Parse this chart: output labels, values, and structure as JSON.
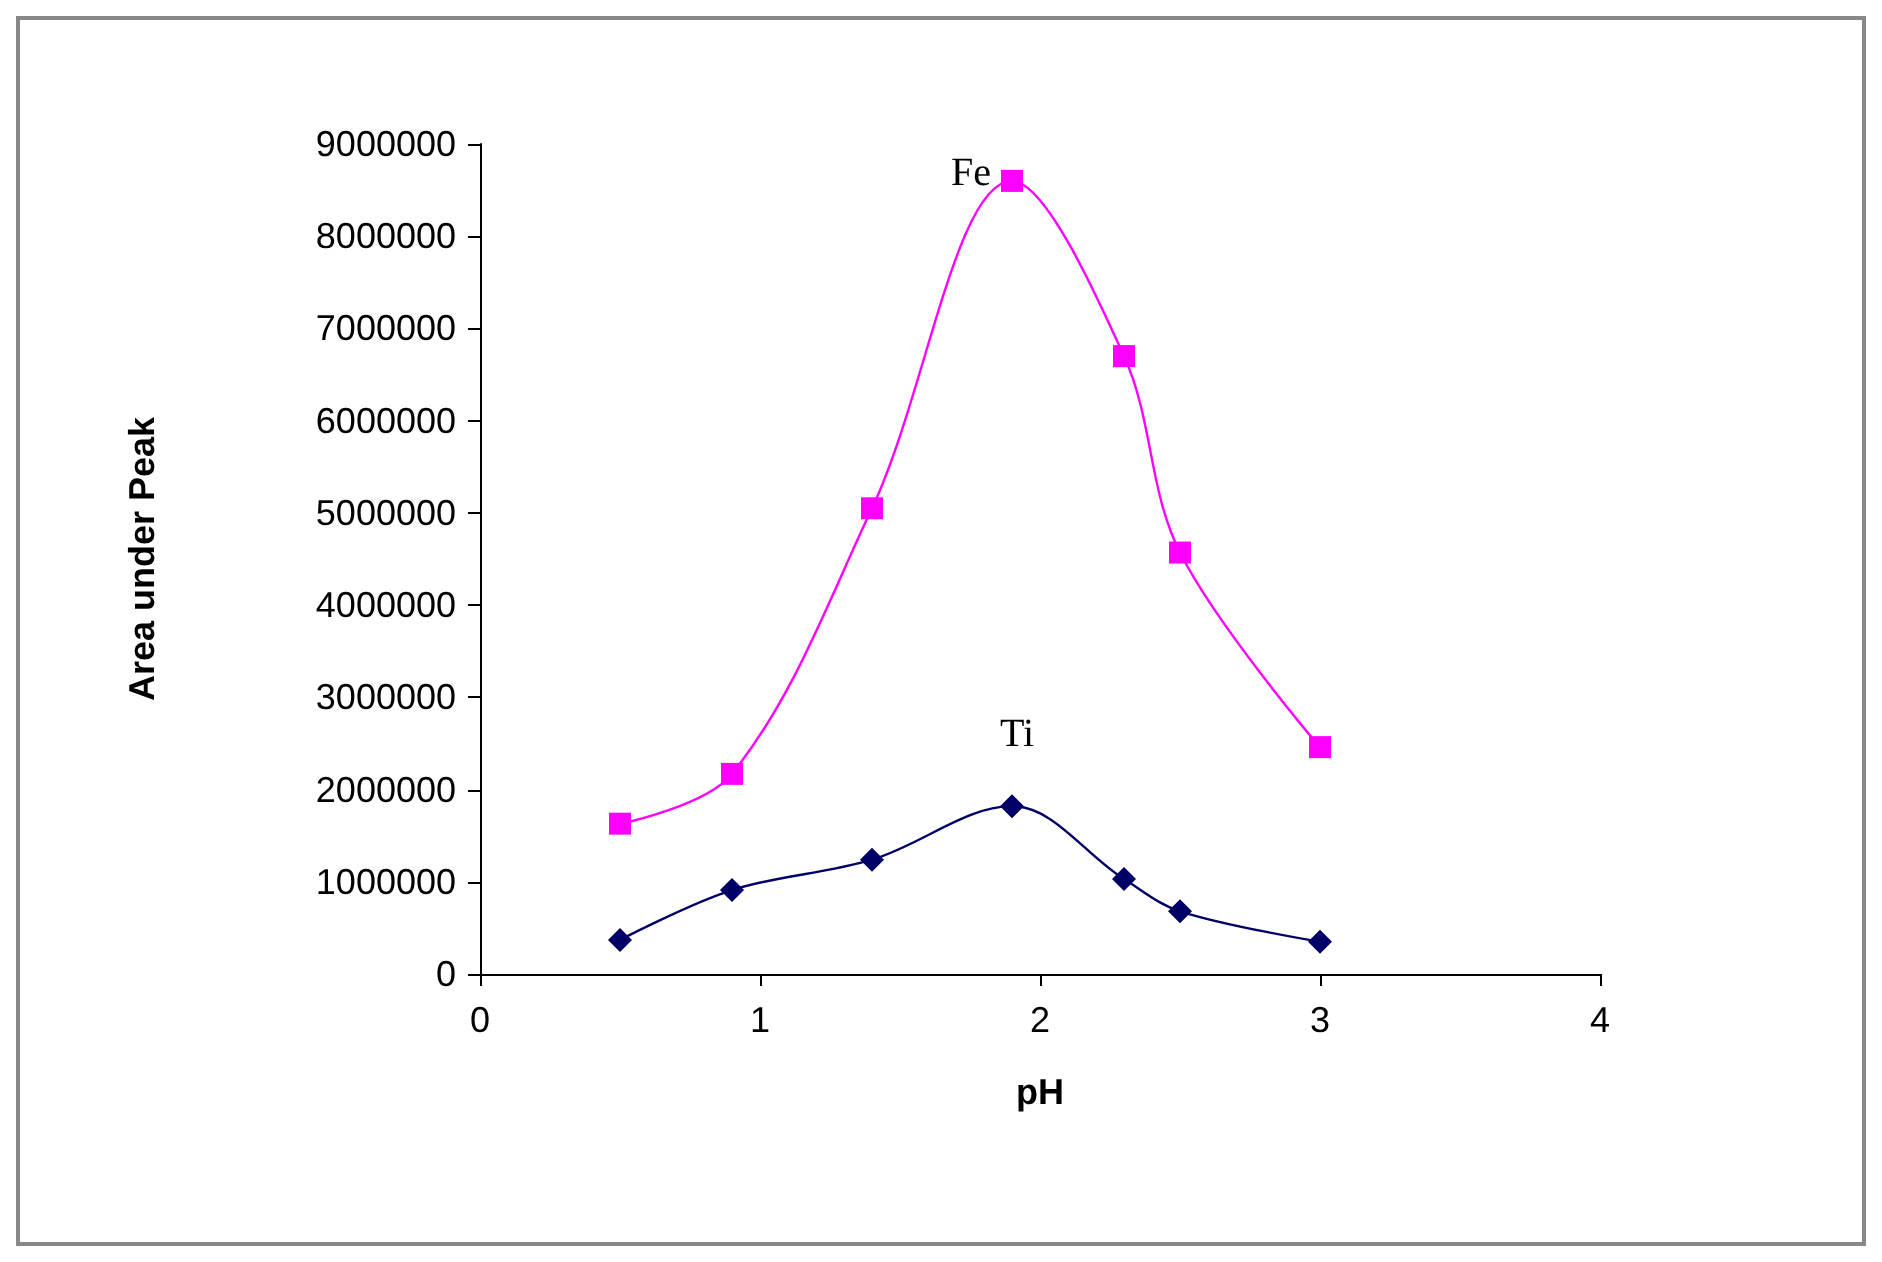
{
  "chart_data": {
    "type": "line",
    "xlabel": "pH",
    "ylabel": "Area under Peak",
    "xlim": [
      0,
      4
    ],
    "xticks": [
      0,
      1,
      2,
      3,
      4
    ],
    "ylim": [
      0,
      9000000
    ],
    "yticks": [
      0,
      1000000,
      2000000,
      3000000,
      4000000,
      5000000,
      6000000,
      7000000,
      8000000,
      9000000
    ],
    "grid": false,
    "legend": false,
    "series": [
      {
        "name": "Fe",
        "color": "#ff00ff",
        "marker": "square",
        "x": [
          0.5,
          0.9,
          1.4,
          1.9,
          2.3,
          2.5,
          3.0
        ],
        "values": [
          1630000,
          2170000,
          5050000,
          8600000,
          6700000,
          4570000,
          2460000
        ]
      },
      {
        "name": "Ti",
        "color": "#000066",
        "marker": "diamond",
        "x": [
          0.5,
          0.9,
          1.4,
          1.9,
          2.3,
          2.5,
          3.0
        ],
        "values": [
          370000,
          910000,
          1240000,
          1820000,
          1030000,
          680000,
          350000
        ]
      }
    ]
  }
}
